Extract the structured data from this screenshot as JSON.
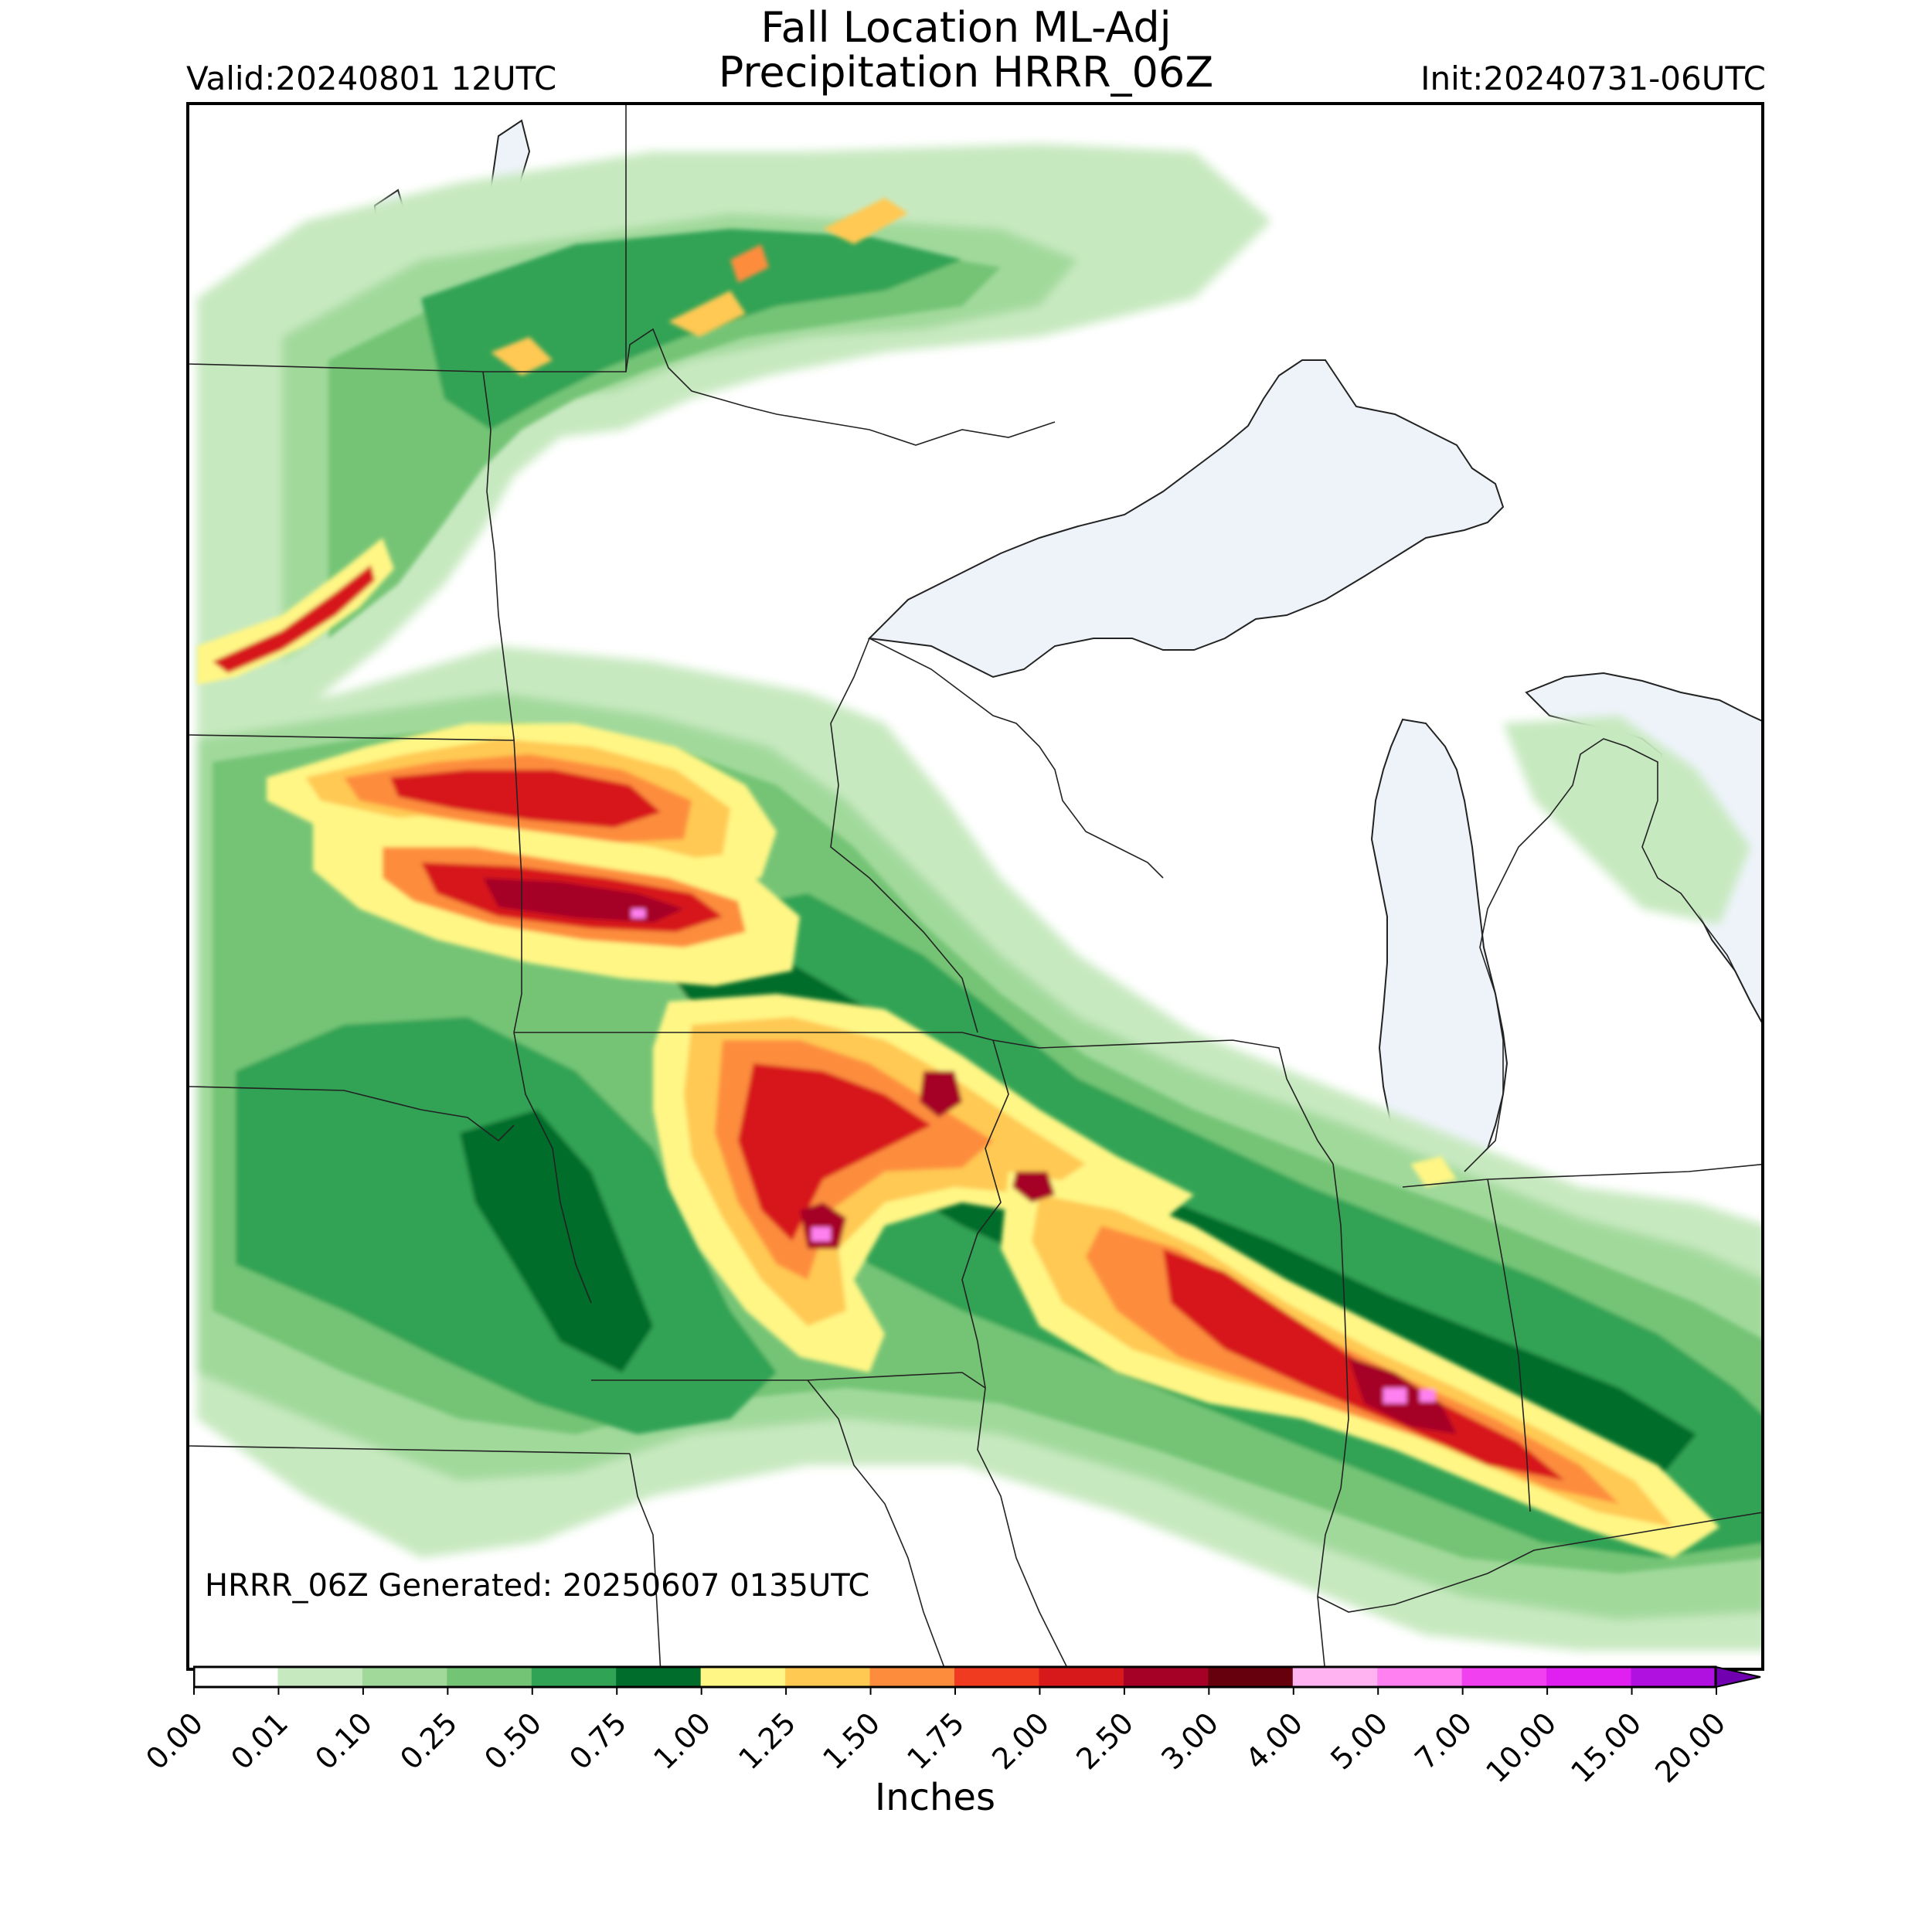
{
  "header": {
    "title_line1": "Fall Location ML-Adj",
    "title_line2": "Precipitation HRRR_06Z",
    "valid": "Valid:20240801 12UTC",
    "init": "Init:20240731-06UTC"
  },
  "map": {
    "generated_note": "HRRR_06Z Generated: 20250607 0135UTC",
    "water_color": "#eef3fa",
    "border_color": "#222222"
  },
  "colorbar": {
    "label": "Inches",
    "ticks": [
      "0.00",
      "0.01",
      "0.10",
      "0.25",
      "0.50",
      "0.75",
      "1.00",
      "1.25",
      "1.50",
      "1.75",
      "2.00",
      "2.50",
      "3.00",
      "4.00",
      "5.00",
      "7.00",
      "10.00",
      "15.00",
      "20.00"
    ],
    "colors": [
      "#ffffff",
      "#c7e9c0",
      "#a1d99b",
      "#74c476",
      "#31a354",
      "#006d2c",
      "#fff685",
      "#ffc952",
      "#fd8d3c",
      "#f03b20",
      "#d7191c",
      "#a50026",
      "#67000d",
      "#ffb3f0",
      "#ff80f0",
      "#f040f0",
      "#e020f0",
      "#b010e0"
    ],
    "extend_color": "#7000b0"
  }
}
